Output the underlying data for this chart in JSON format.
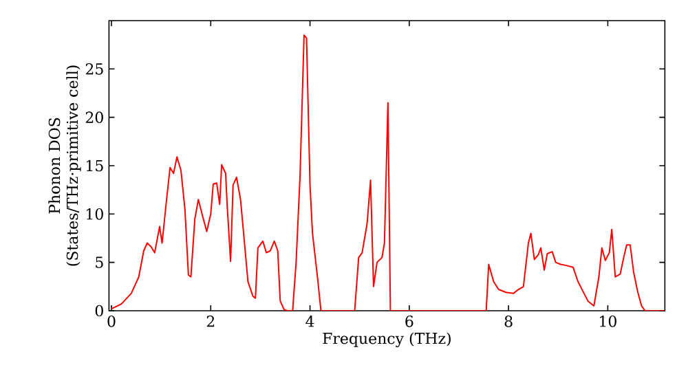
{
  "chart_data": {
    "type": "line",
    "xlabel": "Frequency (THz)",
    "ylabel": "Phonon DOS\n(States/THz·primitive cell)",
    "xlim": [
      -0.05,
      11.15
    ],
    "ylim": [
      0,
      30
    ],
    "xticks": [
      0,
      2,
      4,
      6,
      8,
      10
    ],
    "yticks": [
      0,
      5,
      10,
      15,
      20,
      25
    ],
    "grid": false,
    "marker": "none",
    "line_style": "solid",
    "series": [
      {
        "color": "#ff0000",
        "x": [
          0,
          0.2,
          0.4,
          0.55,
          0.65,
          0.72,
          0.8,
          0.87,
          0.97,
          1.02,
          1.1,
          1.18,
          1.25,
          1.32,
          1.4,
          1.48,
          1.55,
          1.6,
          1.68,
          1.75,
          1.85,
          1.92,
          2.0,
          2.05,
          2.12,
          2.18,
          2.22,
          2.3,
          2.33,
          2.4,
          2.45,
          2.52,
          2.6,
          2.68,
          2.75,
          2.85,
          2.9,
          2.95,
          3.05,
          3.12,
          3.2,
          3.28,
          3.35,
          3.4,
          3.48,
          3.55,
          3.65,
          3.72,
          3.8,
          3.88,
          3.93,
          4.0,
          4.05,
          4.15,
          4.22,
          4.9,
          4.98,
          5.05,
          5.1,
          5.15,
          5.22,
          5.28,
          5.35,
          5.45,
          5.5,
          5.57,
          5.62,
          7.55,
          7.6,
          7.7,
          7.8,
          7.95,
          8.1,
          8.2,
          8.3,
          8.4,
          8.45,
          8.52,
          8.6,
          8.65,
          8.72,
          8.78,
          8.88,
          8.95,
          9.05,
          9.15,
          9.3,
          9.4,
          9.5,
          9.6,
          9.72,
          9.82,
          9.88,
          9.95,
          10.03,
          10.08,
          10.15,
          10.25,
          10.32,
          10.38,
          10.45,
          10.52,
          10.6,
          10.68,
          10.75,
          11.15
        ],
        "values": [
          0.2,
          0.7,
          1.8,
          3.5,
          6.2,
          7.0,
          6.6,
          6.0,
          8.7,
          7.0,
          11,
          14.8,
          14.2,
          15.9,
          14.5,
          10.5,
          3.7,
          3.5,
          9.5,
          11.5,
          9.5,
          8.2,
          10,
          13.1,
          13.2,
          11,
          15.1,
          14.2,
          11,
          5.1,
          13,
          13.8,
          11.5,
          7,
          3,
          1.5,
          1.3,
          6.5,
          7.2,
          6,
          6.2,
          7.2,
          6.2,
          1,
          0.1,
          0,
          0,
          5,
          14,
          28.5,
          28.2,
          13,
          8,
          3.5,
          0,
          0,
          5.5,
          6,
          7.5,
          9,
          13.5,
          2.5,
          5,
          5.5,
          7,
          21.5,
          0,
          0,
          4.8,
          3,
          2.2,
          1.9,
          1.8,
          2.2,
          2.5,
          7,
          8,
          5.3,
          5.8,
          6.5,
          4.2,
          5.9,
          6.1,
          5,
          4.8,
          4.7,
          4.5,
          3,
          2,
          1,
          0.5,
          3.5,
          6.5,
          5.2,
          6.0,
          8.4,
          3.5,
          3.8,
          5.5,
          6.8,
          6.8,
          4,
          2,
          0.5,
          0,
          0
        ]
      }
    ]
  }
}
